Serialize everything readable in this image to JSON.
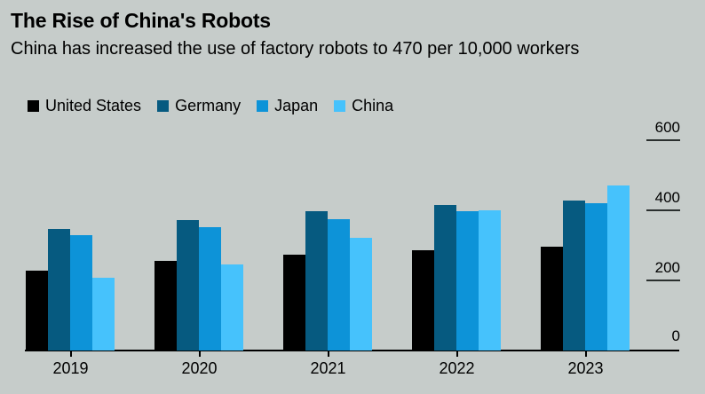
{
  "header": {
    "title": "The Rise of China's Robots",
    "subtitle": "China has increased the use of factory robots to 470 per 10,000 workers"
  },
  "colors": {
    "background": "#c6ccca",
    "text": "#000000",
    "axis": "#000000",
    "united_states": "#000000",
    "germany": "#065a80",
    "japan": "#0d93d8",
    "china": "#46c2fc"
  },
  "legend": [
    {
      "label": "United States",
      "color": "#000000"
    },
    {
      "label": "Germany",
      "color": "#065a80"
    },
    {
      "label": "Japan",
      "color": "#0d93d8"
    },
    {
      "label": "China",
      "color": "#46c2fc"
    }
  ],
  "chart_data": {
    "type": "bar",
    "title": "The Rise of China's Robots",
    "subtitle": "China has increased the use of factory robots to 470 per 10,000 workers",
    "categories": [
      "2019",
      "2020",
      "2021",
      "2022",
      "2023"
    ],
    "series": [
      {
        "name": "United States",
        "color": "#000000",
        "values": [
          228,
          255,
          274,
          285,
          295
        ]
      },
      {
        "name": "Germany",
        "color": "#065a80",
        "values": [
          346,
          371,
          397,
          415,
          429
        ]
      },
      {
        "name": "Japan",
        "color": "#0d93d8",
        "values": [
          330,
          352,
          375,
          397,
          419
        ]
      },
      {
        "name": "China",
        "color": "#46c2fc",
        "values": [
          207,
          246,
          322,
          400,
          470
        ]
      }
    ],
    "ylim": [
      0,
      600
    ],
    "yticks": [
      0,
      200,
      400,
      600
    ],
    "y_axis_side": "right",
    "grid": false,
    "legend_position": "top-left"
  }
}
